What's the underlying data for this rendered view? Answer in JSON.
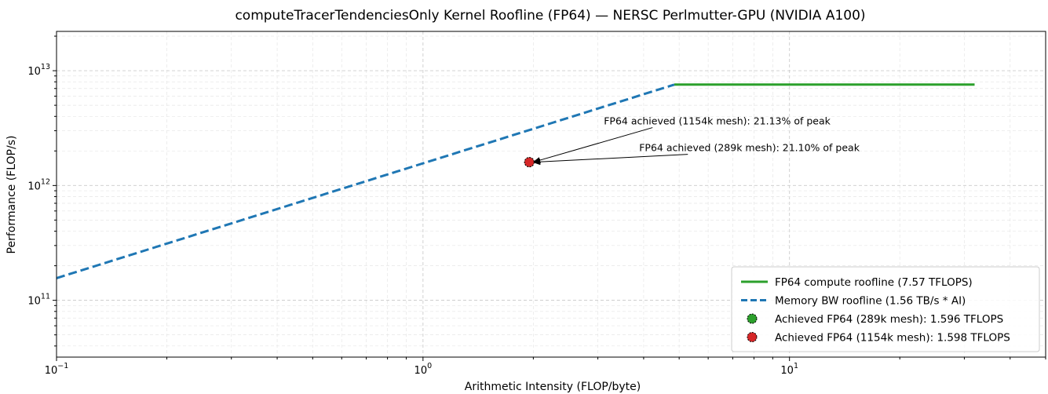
{
  "chart_data": {
    "type": "line",
    "title": "computeTracerTendenciesOnly Kernel Roofline (FP64) — NERSC Perlmutter-GPU (NVIDIA A100)",
    "xlabel": "Arithmetic Intensity (FLOP/byte)",
    "ylabel": "Performance (FLOP/s)",
    "xscale": "log",
    "yscale": "log",
    "xlim": [
      0.1,
      50
    ],
    "ylim": [
      32000000000.0,
      22000000000000.0
    ],
    "grid": true,
    "x_ticks": [
      {
        "value": 0.1,
        "base": "10",
        "exp": "−1"
      },
      {
        "value": 1,
        "base": "10",
        "exp": "0"
      },
      {
        "value": 10,
        "base": "10",
        "exp": "1"
      }
    ],
    "y_ticks": [
      {
        "value": 100000000000.0,
        "base": "10",
        "exp": "11"
      },
      {
        "value": 1000000000000.0,
        "base": "10",
        "exp": "12"
      },
      {
        "value": 10000000000000.0,
        "base": "10",
        "exp": "13"
      }
    ],
    "series": [
      {
        "name": "FP64 compute roofline (7.57 TFLOPS)",
        "kind": "line",
        "style": "solid",
        "color": "#2ca02c",
        "x": [
          4.85,
          32
        ],
        "y": [
          7570000000000.0,
          7570000000000.0
        ]
      },
      {
        "name": "Memory BW roofline (1.56 TB/s * AI)",
        "kind": "line",
        "style": "dashed",
        "color": "#1f77b4",
        "x": [
          0.1,
          4.85
        ],
        "y": [
          156000000000.0,
          7570000000000.0
        ]
      },
      {
        "name": "Achieved FP64 (289k mesh): 1.596 TFLOPS",
        "kind": "point",
        "color": "#2ca02c",
        "x": [
          1.95
        ],
        "y": [
          1596000000000.0
        ]
      },
      {
        "name": "Achieved FP64 (1154k mesh): 1.598 TFLOPS",
        "kind": "point",
        "color": "#d62728",
        "x": [
          1.95
        ],
        "y": [
          1598000000000.0
        ]
      }
    ],
    "annotations": [
      {
        "text": "FP64 achieved (1154k mesh): 21.13% of peak",
        "x": 1.95,
        "y": 1598000000000.0
      },
      {
        "text": "FP64 achieved (289k mesh): 21.10% of peak",
        "x": 1.95,
        "y": 1596000000000.0
      }
    ],
    "legend_position": "lower-right"
  }
}
